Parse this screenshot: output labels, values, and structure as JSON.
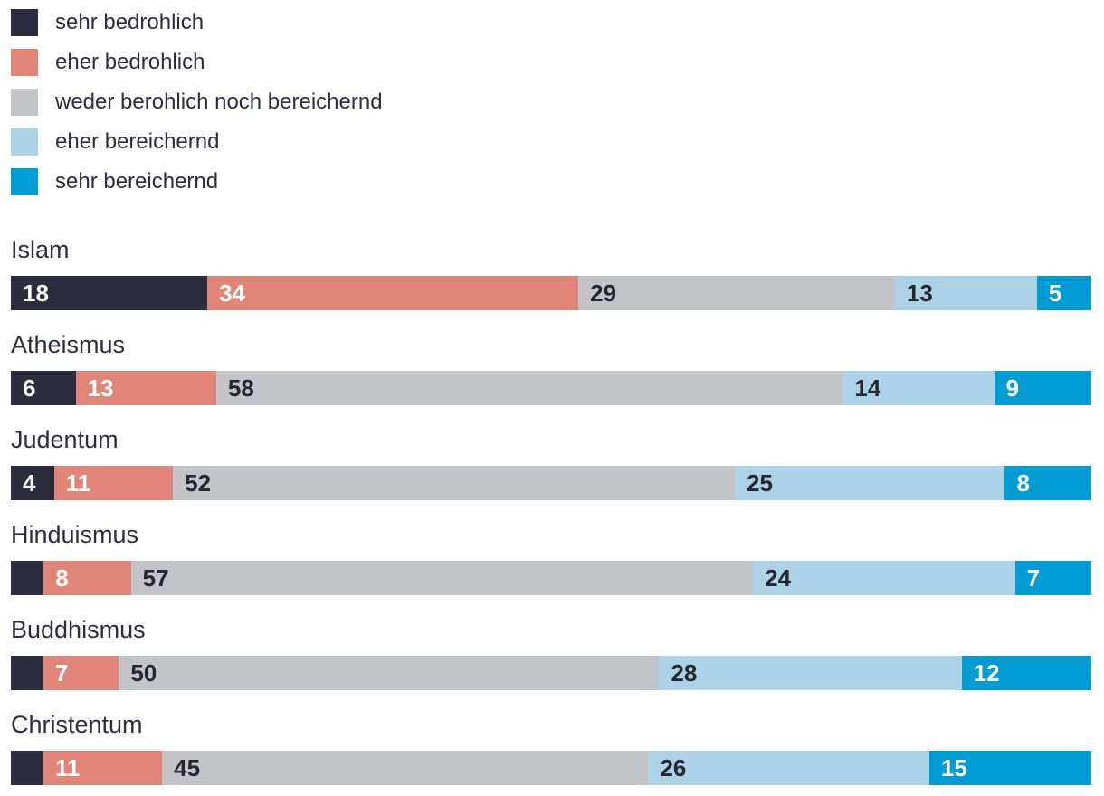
{
  "legend": {
    "items": [
      {
        "label": "sehr bedrohlich",
        "color": "#2b2d3f",
        "label_color": "#ffffff"
      },
      {
        "label": "eher bedrohlich",
        "color": "#e08577",
        "label_color": "#ffffff"
      },
      {
        "label": "weder berohlich noch bereichernd",
        "color": "#c3c4c8",
        "label_color": "#26272e"
      },
      {
        "label": "eher bereichernd",
        "color": "#abd2e6",
        "label_color": "#26272e"
      },
      {
        "label": "sehr bereichernd",
        "color": "#009cd3",
        "label_color": "#ffffff"
      }
    ]
  },
  "chart_data": {
    "type": "bar",
    "stacked": true,
    "orientation": "horizontal",
    "unit": "percent",
    "legend_position": "top-left",
    "grid": false,
    "categories": [
      "Islam",
      "Atheismus",
      "Judentum",
      "Hinduismus",
      "Buddhismus",
      "Christentum"
    ],
    "series": [
      {
        "name": "sehr bedrohlich",
        "values": [
          18,
          6,
          4,
          3,
          3,
          3
        ]
      },
      {
        "name": "eher bedrohlich",
        "values": [
          34,
          13,
          11,
          8,
          7,
          11
        ]
      },
      {
        "name": "weder berohlich noch bereichernd",
        "values": [
          29,
          58,
          52,
          57,
          50,
          45
        ]
      },
      {
        "name": "eher bereichernd",
        "values": [
          13,
          14,
          25,
          24,
          28,
          26
        ]
      },
      {
        "name": "sehr bereichernd",
        "values": [
          5,
          9,
          8,
          7,
          12,
          15
        ]
      }
    ],
    "rows": [
      {
        "category": "Islam",
        "values": [
          18,
          34,
          29,
          13,
          5
        ],
        "labels": [
          "18",
          "34",
          "29",
          "13",
          "5"
        ]
      },
      {
        "category": "Atheismus",
        "values": [
          6,
          13,
          58,
          14,
          9
        ],
        "labels": [
          "6",
          "13",
          "58",
          "14",
          "9"
        ]
      },
      {
        "category": "Judentum",
        "values": [
          4,
          11,
          52,
          25,
          8
        ],
        "labels": [
          "4",
          "11",
          "52",
          "25",
          "8"
        ]
      },
      {
        "category": "Hinduismus",
        "values": [
          3,
          8,
          57,
          24,
          7
        ],
        "labels": [
          "",
          "8",
          "57",
          "24",
          "7"
        ]
      },
      {
        "category": "Buddhismus",
        "values": [
          3,
          7,
          50,
          28,
          12
        ],
        "labels": [
          "",
          "7",
          "50",
          "28",
          "12"
        ]
      },
      {
        "category": "Christentum",
        "values": [
          3,
          11,
          45,
          26,
          15
        ],
        "labels": [
          "",
          "11",
          "45",
          "26",
          "15"
        ]
      }
    ]
  },
  "colors": {
    "background": "#ffffff",
    "text": "#2c2e40",
    "value_text_dark": "#26272e",
    "value_text_light": "#ffffff"
  }
}
